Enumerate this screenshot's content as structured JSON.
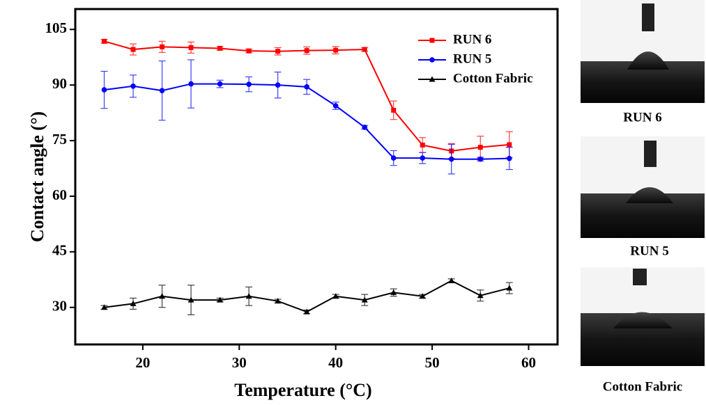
{
  "chart_data": {
    "type": "line",
    "xlabel": "Temperature (°C)",
    "ylabel": "Contact angle (°)",
    "x": [
      16,
      19,
      22,
      25,
      28,
      31,
      34,
      37,
      40,
      43,
      46,
      49,
      52,
      55,
      58
    ],
    "xlim": [
      13,
      63
    ],
    "xticks": [
      20,
      30,
      40,
      50,
      60
    ],
    "ylim": [
      20,
      110.5
    ],
    "yticks": [
      30,
      45,
      60,
      75,
      90,
      105
    ],
    "legend": "upper right",
    "series": [
      {
        "name": "RUN 6",
        "color": "#ff0000",
        "marker": "square",
        "values": [
          101.8,
          99.6,
          100.3,
          100.1,
          99.9,
          99.2,
          99.1,
          99.3,
          99.4,
          99.6,
          83.2,
          73.8,
          72.2,
          73.2,
          73.9
        ],
        "errors": [
          0.5,
          1.5,
          1.5,
          1.5,
          0.5,
          0.5,
          1,
          1,
          1,
          0.5,
          2.5,
          2,
          2,
          3,
          3.5
        ]
      },
      {
        "name": "RUN 5",
        "color": "#0000ff",
        "marker": "circle",
        "values": [
          88.7,
          89.7,
          88.5,
          90.3,
          90.3,
          90.2,
          90.0,
          89.5,
          84.4,
          78.6,
          70.3,
          70.3,
          70.0,
          70.0,
          70.2
        ],
        "errors": [
          5,
          3,
          8,
          6.5,
          1,
          2,
          3.5,
          2,
          1,
          0.5,
          2,
          1.5,
          4,
          0.5,
          3
        ]
      },
      {
        "name": "Cotton Fabric",
        "color": "#000000",
        "marker": "triangle",
        "values": [
          30.0,
          31.0,
          33.0,
          32.0,
          32.0,
          33.0,
          31.7,
          28.8,
          33.0,
          32.0,
          34.0,
          33.0,
          37.2,
          33.2,
          35.2
        ],
        "errors": [
          0.5,
          1.5,
          3,
          4,
          0.5,
          2.5,
          0.5,
          0.5,
          0.5,
          1.5,
          1,
          0.5,
          0.5,
          1.5,
          1.5
        ]
      }
    ]
  },
  "photos": [
    {
      "label": "RUN 6"
    },
    {
      "label": "RUN 5"
    },
    {
      "label": "Cotton Fabric"
    }
  ]
}
